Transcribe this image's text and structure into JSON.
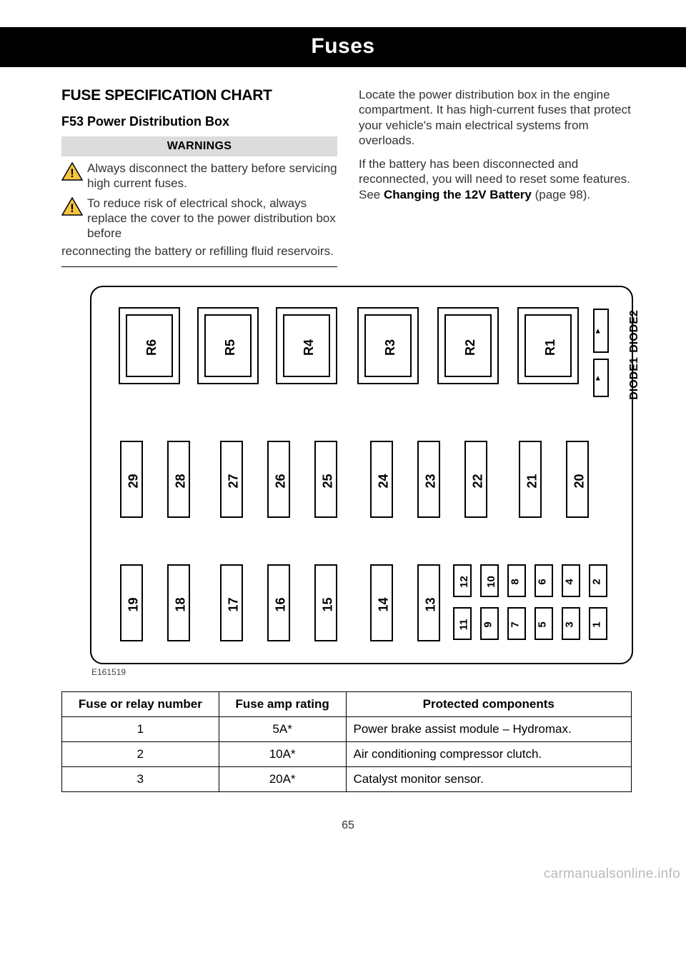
{
  "band_title": "Fuses",
  "section_title": "FUSE SPECIFICATION CHART",
  "sub_title": "F53 Power Distribution Box",
  "warnings_header": "WARNINGS",
  "warning1": "Always disconnect the battery before servicing high current fuses.",
  "warning2": "To reduce risk of electrical shock, always replace the cover to the power distribution box before",
  "warning2_cont": "reconnecting the battery or refilling fluid reservoirs.",
  "right_p1": "Locate the power distribution box in the engine compartment. It has high-current fuses that protect your vehicle's main electrical systems from overloads.",
  "right_p2a": "If the battery has been disconnected and reconnected, you will need to reset some features.  See ",
  "right_p2b": "Changing the 12V Battery",
  "right_p2c": " (page 98).",
  "diagram": {
    "code": "E161519",
    "relays": [
      "R6",
      "R5",
      "R4",
      "R3",
      "R2",
      "R1"
    ],
    "diodes": [
      "DIODE1",
      "DIODE2"
    ],
    "row2": [
      "29",
      "28",
      "27",
      "26",
      "25",
      "24",
      "23",
      "22",
      "21",
      "20"
    ],
    "row3": [
      "19",
      "18",
      "17",
      "16",
      "15",
      "14",
      "13"
    ],
    "mini_top": [
      "12",
      "10",
      "8",
      "6",
      "4",
      "2"
    ],
    "mini_bot": [
      "11",
      "9",
      "7",
      "5",
      "3",
      "1"
    ],
    "colors": {
      "stroke": "#000000",
      "bg": "#ffffff"
    }
  },
  "table": {
    "headers": [
      "Fuse or relay number",
      "Fuse amp rating",
      "Protected components"
    ],
    "rows": [
      [
        "1",
        "5A*",
        "Power brake assist module – Hydromax."
      ],
      [
        "2",
        "10A*",
        "Air conditioning compressor clutch."
      ],
      [
        "3",
        "20A*",
        "Catalyst monitor sensor."
      ]
    ],
    "col_widths": [
      "220px",
      "178px",
      "400px"
    ]
  },
  "page_number": "65",
  "watermark": "carmanualsonline.info"
}
